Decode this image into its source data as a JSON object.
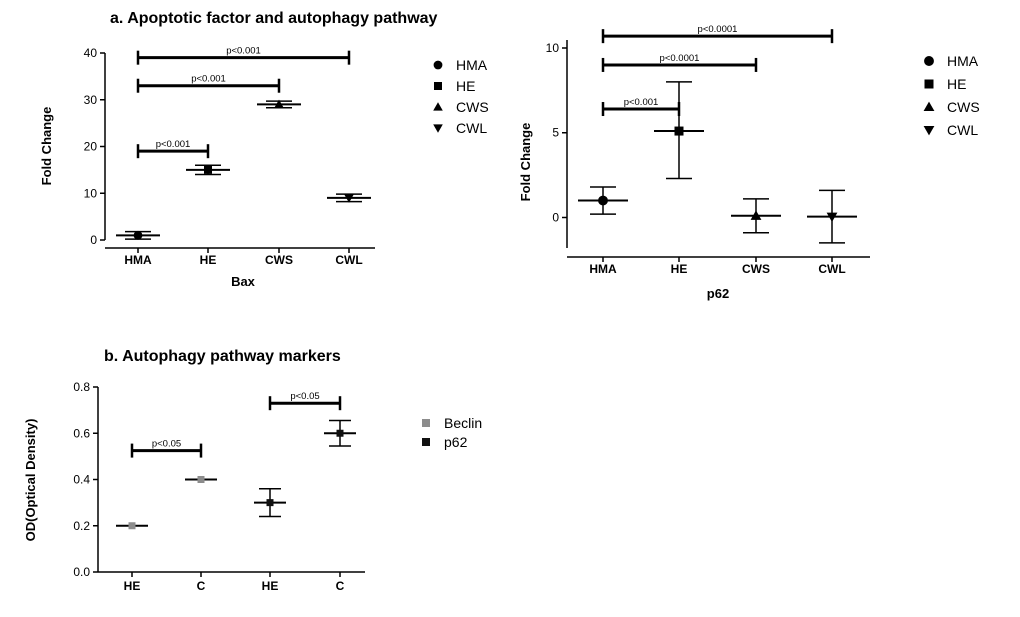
{
  "chart_data": [
    {
      "type": "scatter",
      "section_title": "a. Apoptotic factor and autophagy pathway",
      "xlabel": "Bax",
      "ylabel": "Fold Change",
      "ylim": [
        0,
        40
      ],
      "yticks": [
        0,
        10,
        20,
        30,
        40
      ],
      "categories": [
        "HMA",
        "HE",
        "CWS",
        "CWL"
      ],
      "series": [
        {
          "name": "HMA",
          "marker": "circle",
          "category": "HMA",
          "mean": 1,
          "low": 0.2,
          "high": 1.8
        },
        {
          "name": "HE",
          "marker": "square",
          "category": "HE",
          "mean": 15,
          "low": 14,
          "high": 16
        },
        {
          "name": "CWS",
          "marker": "triangle-up",
          "category": "CWS",
          "mean": 29,
          "low": 28.3,
          "high": 29.7
        },
        {
          "name": "CWL",
          "marker": "triangle-down",
          "category": "CWL",
          "mean": 9,
          "low": 8.2,
          "high": 9.8
        }
      ],
      "legend": [
        "HMA",
        "HE",
        "CWS",
        "CWL"
      ],
      "significance": [
        {
          "from": "HMA",
          "to": "HE",
          "y": 19,
          "label": "p<0.001"
        },
        {
          "from": "HMA",
          "to": "CWS",
          "y": 33,
          "label": "p<0.001"
        },
        {
          "from": "HMA",
          "to": "CWL",
          "y": 39,
          "label": "p<0.001"
        }
      ]
    },
    {
      "type": "scatter",
      "xlabel": "p62",
      "ylabel": "Fold Change",
      "ylim": [
        -1.8,
        10
      ],
      "yticks": [
        0,
        5,
        10
      ],
      "categories": [
        "HMA",
        "HE",
        "CWS",
        "CWL"
      ],
      "series": [
        {
          "name": "HMA",
          "marker": "circle",
          "category": "HMA",
          "mean": 1,
          "low": 0.2,
          "high": 1.8
        },
        {
          "name": "HE",
          "marker": "square",
          "category": "HE",
          "mean": 5.1,
          "low": 2.3,
          "high": 8.0
        },
        {
          "name": "CWS",
          "marker": "triangle-up",
          "category": "CWS",
          "mean": 0.1,
          "low": -0.9,
          "high": 1.1
        },
        {
          "name": "CWL",
          "marker": "triangle-down",
          "category": "CWL",
          "mean": 0.05,
          "low": -1.5,
          "high": 1.6
        }
      ],
      "legend": [
        "HMA",
        "HE",
        "CWS",
        "CWL"
      ],
      "significance": [
        {
          "from": "HMA",
          "to": "HE",
          "y": 6.4,
          "label": "p<0.001"
        },
        {
          "from": "HMA",
          "to": "CWS",
          "y": 9.0,
          "label": "p<0.0001"
        },
        {
          "from": "HMA",
          "to": "CWL",
          "y": 10.7,
          "label": "p<0.0001"
        }
      ]
    },
    {
      "type": "scatter",
      "section_title": "b. Autophagy pathway markers",
      "xlabel": "",
      "ylabel": "OD(Optical Density)",
      "ylim": [
        0,
        0.8
      ],
      "yticks": [
        0.0,
        0.2,
        0.4,
        0.6,
        0.8
      ],
      "categories": [
        "HE",
        "C",
        "HE",
        "C"
      ],
      "series": [
        {
          "name": "Beclin",
          "color": "#8c8c8c",
          "points": [
            {
              "index": 0,
              "mean": 0.2,
              "low": 0.2,
              "high": 0.2
            },
            {
              "index": 1,
              "mean": 0.4,
              "low": 0.4,
              "high": 0.4
            }
          ]
        },
        {
          "name": "p62",
          "color": "#111111",
          "points": [
            {
              "index": 2,
              "mean": 0.3,
              "low": 0.24,
              "high": 0.36
            },
            {
              "index": 3,
              "mean": 0.6,
              "low": 0.545,
              "high": 0.655
            }
          ]
        }
      ],
      "legend": [
        "Beclin",
        "p62"
      ],
      "significance": [
        {
          "from": 0,
          "to": 1,
          "y": 0.525,
          "label": "p<0.05"
        },
        {
          "from": 2,
          "to": 3,
          "y": 0.73,
          "label": "p<0.05"
        }
      ]
    }
  ]
}
